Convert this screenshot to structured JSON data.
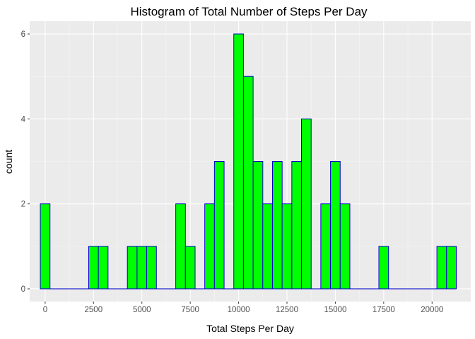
{
  "chart_data": {
    "type": "bar",
    "title": "Histogram of Total Number of Steps Per Day",
    "xlabel": "Total Steps Per Day",
    "ylabel": "count",
    "x_ticks": [
      0,
      2500,
      5000,
      7500,
      10000,
      12500,
      15000,
      17500,
      20000
    ],
    "x_tick_labels": [
      "0",
      "2500",
      "5000",
      "7500",
      "10000",
      "12500",
      "15000",
      "17500",
      "20000"
    ],
    "y_ticks": [
      0,
      2,
      4,
      6
    ],
    "y_tick_labels": [
      "0",
      "2",
      "4",
      "6"
    ],
    "xlim": [
      -800,
      22000
    ],
    "ylim": [
      -0.3,
      6.3
    ],
    "bin_width": 500,
    "bin_centers": [
      0,
      500,
      1000,
      1500,
      2000,
      2500,
      3000,
      3500,
      4000,
      4500,
      5000,
      5500,
      6000,
      6500,
      7000,
      7500,
      8000,
      8500,
      9000,
      9500,
      10000,
      10500,
      11000,
      11500,
      12000,
      12500,
      13000,
      13500,
      14000,
      14500,
      15000,
      15500,
      16000,
      16500,
      17000,
      17500,
      18000,
      18500,
      19000,
      19500,
      20000,
      20500,
      21000
    ],
    "counts": [
      2,
      0,
      0,
      0,
      0,
      1,
      1,
      0,
      0,
      1,
      1,
      1,
      0,
      0,
      2,
      1,
      0,
      2,
      3,
      0,
      6,
      5,
      3,
      2,
      3,
      2,
      3,
      4,
      0,
      2,
      3,
      2,
      0,
      0,
      0,
      1,
      0,
      0,
      0,
      0,
      0,
      1,
      1
    ],
    "fill_color": "#00ff00",
    "outline_color": "#0000cc",
    "panel_background": "#ebebeb",
    "grid": true,
    "legend": "none"
  }
}
